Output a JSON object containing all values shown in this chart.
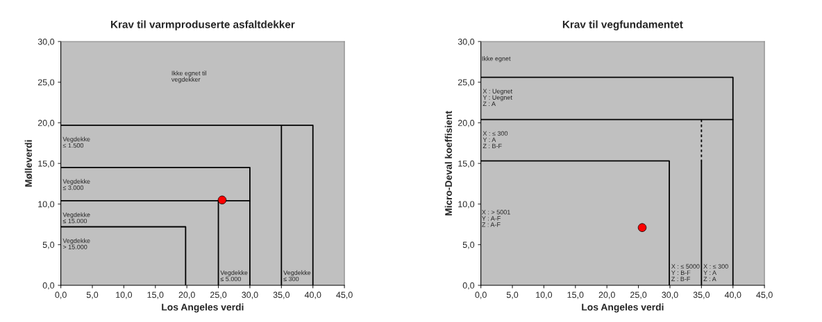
{
  "chart_data": [
    {
      "type": "scatter",
      "title": "Krav til varmproduserte asfaltdekker",
      "xlabel": "Los Angeles verdi",
      "ylabel": "Mølleverdi",
      "xlim": [
        0,
        45
      ],
      "ylim": [
        0,
        30
      ],
      "xticks": [
        {
          "value": 0,
          "label": "0,0"
        },
        {
          "value": 5,
          "label": "5,0"
        },
        {
          "value": 10,
          "label": "10,0"
        },
        {
          "value": 15,
          "label": "15,0"
        },
        {
          "value": 20,
          "label": "20,0"
        },
        {
          "value": 25,
          "label": "25,0"
        },
        {
          "value": 30,
          "label": "30,0"
        },
        {
          "value": 35,
          "label": "35,0"
        },
        {
          "value": 40,
          "label": "40,0"
        },
        {
          "value": 45,
          "label": "45,0"
        }
      ],
      "yticks": [
        {
          "value": 0,
          "label": "0,0"
        },
        {
          "value": 5,
          "label": "5,0"
        },
        {
          "value": 10,
          "label": "10,0"
        },
        {
          "value": 15,
          "label": "15,0"
        },
        {
          "value": 20,
          "label": "20,0"
        },
        {
          "value": 25,
          "label": "25,0"
        },
        {
          "value": 30,
          "label": "30,0"
        }
      ],
      "grid": false,
      "series": [
        {
          "type": "line",
          "color": "#000000",
          "line_style": "solid",
          "marker": "none",
          "x": [
            0,
            40,
            40
          ],
          "values": [
            19.7,
            19.7,
            0
          ]
        },
        {
          "type": "line",
          "color": "#000000",
          "line_style": "solid",
          "marker": "none",
          "x": [
            35,
            35
          ],
          "values": [
            19.7,
            0
          ]
        },
        {
          "type": "line",
          "color": "#000000",
          "line_style": "solid",
          "marker": "none",
          "x": [
            0,
            30,
            30
          ],
          "values": [
            14.5,
            14.5,
            0
          ]
        },
        {
          "type": "line",
          "color": "#000000",
          "line_style": "solid",
          "marker": "none",
          "x": [
            0,
            30
          ],
          "values": [
            10.4,
            10.4
          ]
        },
        {
          "type": "line",
          "color": "#000000",
          "line_style": "solid",
          "marker": "none",
          "x": [
            25,
            25
          ],
          "values": [
            10.4,
            0
          ]
        },
        {
          "type": "line",
          "color": "#000000",
          "line_style": "solid",
          "marker": "none",
          "x": [
            0,
            19.8,
            19.8
          ],
          "values": [
            7.2,
            7.2,
            0
          ]
        },
        {
          "color": "#ff0000",
          "marker": "circle",
          "x": [
            25.6
          ],
          "values": [
            10.5
          ]
        }
      ],
      "annotations": [
        "Ikke egnet til\nvegdekker",
        {
          "text": "Vegdekke\n≤ 1.500",
          "x": 0,
          "y": 19.7
        },
        {
          "text": "Vegdekke\n≤ 3.000",
          "x": 0,
          "y": 14.5
        },
        {
          "text": "Vegdekke\n≤ 15.000",
          "x": 0,
          "y": 10.4
        },
        {
          "text": "Vegdekke\n> 15.000",
          "x": 0,
          "y": 7.2
        },
        {
          "text": "Vegdekke\n≤ 5.000",
          "x": 25,
          "y": 0
        },
        {
          "text": "Vegdekke\n≤ 300",
          "x": 35,
          "y": 0
        }
      ]
    },
    {
      "type": "scatter",
      "title": "Krav til vegfundamentet",
      "xlabel": "Los Angeles verdi",
      "ylabel": "Micro-Deval koeffisient",
      "xlim": [
        0,
        45
      ],
      "ylim": [
        0,
        30
      ],
      "xticks": [
        {
          "value": 0,
          "label": "0,0"
        },
        {
          "value": 5,
          "label": "5,0"
        },
        {
          "value": 10,
          "label": "10,0"
        },
        {
          "value": 15,
          "label": "15,0"
        },
        {
          "value": 20,
          "label": "20,0"
        },
        {
          "value": 25,
          "label": "25,0"
        },
        {
          "value": 30,
          "label": "30,0"
        },
        {
          "value": 35,
          "label": "35,0"
        },
        {
          "value": 40,
          "label": "40,0"
        },
        {
          "value": 45,
          "label": "45,0"
        }
      ],
      "yticks": [
        {
          "value": 0,
          "label": "0,0"
        },
        {
          "value": 5,
          "label": "5,0"
        },
        {
          "value": 10,
          "label": "10,0"
        },
        {
          "value": 15,
          "label": "15,0"
        },
        {
          "value": 20,
          "label": "20,0"
        },
        {
          "value": 25,
          "label": "25,0"
        },
        {
          "value": 30,
          "label": "30,0"
        }
      ],
      "grid": false,
      "series": [
        {
          "type": "line",
          "color": "#000000",
          "line_style": "solid",
          "marker": "none",
          "x": [
            0,
            40,
            40
          ],
          "values": [
            25.6,
            25.6,
            0
          ]
        },
        {
          "type": "line",
          "color": "#000000",
          "line_style": "solid",
          "marker": "none",
          "x": [
            0,
            40
          ],
          "values": [
            20.4,
            20.4
          ]
        },
        {
          "type": "line",
          "color": "#000000",
          "line_style": "dashed",
          "marker": "none",
          "x": [
            35,
            35
          ],
          "values": [
            20.4,
            15.3
          ]
        },
        {
          "type": "line",
          "color": "#000000",
          "line_style": "solid",
          "marker": "none",
          "x": [
            35,
            35
          ],
          "values": [
            15.3,
            0
          ]
        },
        {
          "type": "line",
          "color": "#000000",
          "line_style": "solid",
          "marker": "none",
          "x": [
            0,
            29.9,
            29.9
          ],
          "values": [
            15.3,
            15.3,
            0
          ]
        },
        {
          "color": "#ff0000",
          "marker": "circle",
          "x": [
            25.6
          ],
          "values": [
            7.1
          ]
        }
      ],
      "annotations": [
        "Ikke egnet",
        {
          "text": "X : Uegnet\nY : Uegnet\nZ : A",
          "x": 0,
          "y": 25.6
        },
        {
          "text": "X : ≤ 300\nY : A\nZ : B-F",
          "x": 0,
          "y": 20.4
        },
        "X : > 5001\nY : A-F\nZ : A-F",
        {
          "text": "X : ≤ 5000\nY : B-F\nZ : B-F",
          "x": 29.9,
          "y": 0
        },
        {
          "text": "X : ≤ 300\nY : A\nZ : A",
          "x": 35,
          "y": 0
        }
      ]
    }
  ]
}
